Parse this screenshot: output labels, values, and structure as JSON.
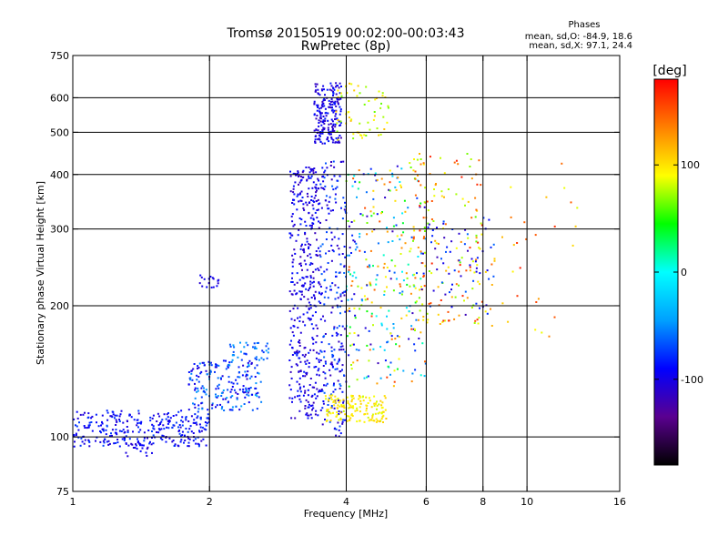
{
  "chart_data": {
    "type": "scatter",
    "title": "Tromsø 20150519 00:02:00-00:03:43",
    "subtitle": "RwPretec (8p)",
    "xlabel": "Frequency [MHz]",
    "ylabel": "Stationary phase Virtual Height [km]",
    "x_scale": "log",
    "y_scale": "log",
    "xlim": [
      1,
      16
    ],
    "ylim": [
      75,
      750
    ],
    "x_ticks": [
      1,
      2,
      4,
      6,
      8,
      10,
      16
    ],
    "y_ticks": [
      75,
      100,
      200,
      300,
      400,
      500,
      600,
      750
    ],
    "grid_x": [
      2,
      4,
      6,
      8,
      10
    ],
    "grid_y": [
      100,
      200,
      300,
      400,
      500,
      600
    ],
    "grid": true,
    "legend": {
      "title": "Phases",
      "lines": [
        "mean, sd,O: -84.9, 18.6",
        "mean, sd,X:  97.1, 24.4"
      ],
      "position": "top-right"
    },
    "colorbar": {
      "label": "[deg]",
      "range": [
        -180,
        180
      ],
      "ticks": [
        -100,
        0,
        100
      ],
      "tick_labels": [
        "-100",
        "0",
        "100"
      ],
      "colors": [
        "#000000",
        "#5a0090",
        "#0000ff",
        "#00a0ff",
        "#00ffff",
        "#00ff00",
        "#ffff00",
        "#ff8000",
        "#ff0000"
      ]
    },
    "clusters": [
      {
        "x_range": [
          1.0,
          2.0
        ],
        "y_range": [
          95,
          115
        ],
        "phase": [
          -110,
          -70
        ],
        "count": 300
      },
      {
        "x_range": [
          1.3,
          1.5
        ],
        "y_range": [
          90,
          100
        ],
        "phase": [
          -110,
          -90
        ],
        "count": 25
      },
      {
        "x_range": [
          1.8,
          2.6
        ],
        "y_range": [
          115,
          150
        ],
        "phase": [
          -110,
          -40
        ],
        "count": 200
      },
      {
        "x_range": [
          2.2,
          2.7
        ],
        "y_range": [
          150,
          165
        ],
        "phase": [
          -80,
          -40
        ],
        "count": 40
      },
      {
        "x_range": [
          1.9,
          2.1
        ],
        "y_range": [
          220,
          235
        ],
        "phase": [
          -110,
          -90
        ],
        "count": 20
      },
      {
        "x_range": [
          3.0,
          3.5
        ],
        "y_range": [
          110,
          420
        ],
        "phase": [
          -120,
          -80
        ],
        "count": 400
      },
      {
        "x_range": [
          3.5,
          4.0
        ],
        "y_range": [
          100,
          430
        ],
        "phase": [
          -120,
          -60
        ],
        "count": 250
      },
      {
        "x_range": [
          3.4,
          3.9
        ],
        "y_range": [
          470,
          650
        ],
        "phase": [
          -120,
          -80
        ],
        "count": 200
      },
      {
        "x_range": [
          3.8,
          5.0
        ],
        "y_range": [
          480,
          650
        ],
        "phase": [
          60,
          120
        ],
        "count": 60
      },
      {
        "x_range": [
          3.6,
          4.9
        ],
        "y_range": [
          108,
          125
        ],
        "phase": [
          80,
          110
        ],
        "count": 150
      },
      {
        "x_range": [
          4.0,
          6.0
        ],
        "y_range": [
          130,
          420
        ],
        "phase": [
          -120,
          160
        ],
        "count": 300
      },
      {
        "x_range": [
          5.5,
          8.0
        ],
        "y_range": [
          180,
          450
        ],
        "phase": [
          60,
          170
        ],
        "count": 150
      },
      {
        "x_range": [
          6.0,
          8.5
        ],
        "y_range": [
          190,
          320
        ],
        "phase": [
          -120,
          -60
        ],
        "count": 60
      },
      {
        "x_range": [
          8.0,
          13.0
        ],
        "y_range": [
          170,
          500
        ],
        "phase": [
          80,
          170
        ],
        "count": 35
      }
    ]
  }
}
